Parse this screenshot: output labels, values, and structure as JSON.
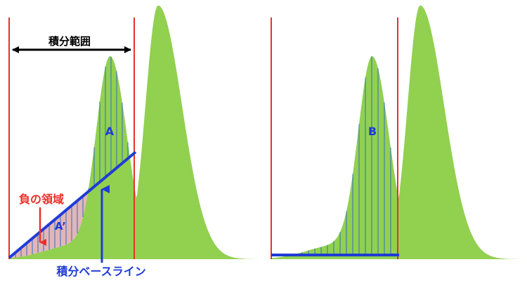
{
  "labels": {
    "integration_range": "積分範囲",
    "area_a": "A",
    "area_a_prime": "A’",
    "area_b": "B",
    "negative_region": "負の領域",
    "integration_baseline": "積分ベースライン"
  },
  "colors": {
    "peak_fill": "#92d050",
    "boundary_line": "#e8302a",
    "baseline": "#1f3bd6",
    "hatch": "#2e6fc2",
    "negative_fill": "#e3b6b6",
    "negative_label": "#e8302a",
    "arrow_black": "#000000"
  }
}
